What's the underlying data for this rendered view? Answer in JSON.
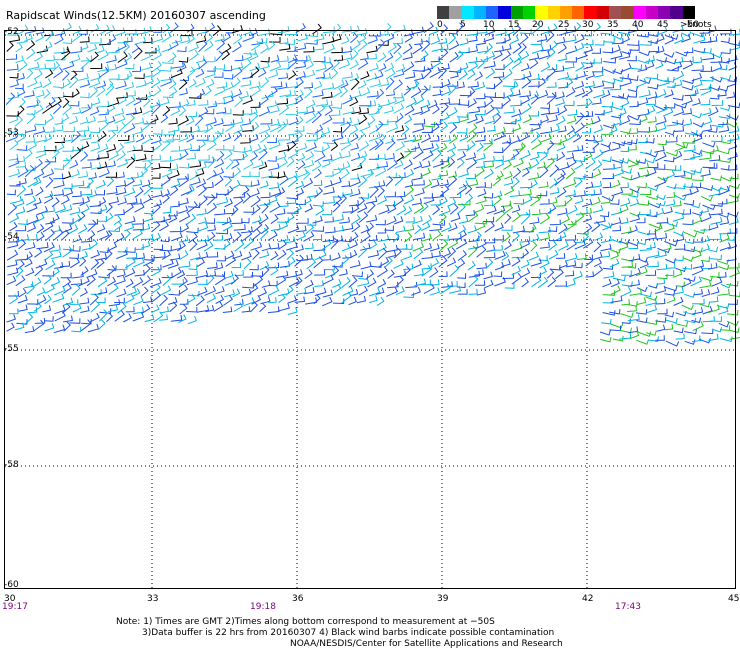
{
  "title": "Rapidscat Winds(12.5KM) 20160307 ascending",
  "legend": {
    "colors": [
      "#404040",
      "#a0a0a0",
      "#00c8ff",
      "#1e64ff",
      "#0a1eb4",
      "#00a000",
      "#8cdc00",
      "#ffff00",
      "#ffc800",
      "#ff8c00",
      "#ff5a00",
      "#ff0000",
      "#b41e1e",
      "#a05040",
      "#ff00ff",
      "#c800c8",
      "#7800a0",
      "#000000",
      "#000060"
    ],
    "tick_labels": [
      "0",
      "5",
      "10",
      "15",
      "20",
      "25",
      "30",
      "35",
      "40",
      "45",
      ">50"
    ],
    "units": "knots"
  },
  "map": {
    "latitude_labels": [
      "-52",
      "-53",
      "-54",
      "-55",
      "-58",
      "-60"
    ],
    "longitude_labels": [
      "30",
      "33",
      "36",
      "39",
      "42",
      "45"
    ],
    "time_labels": [
      "19:17",
      "19:18",
      "17:43"
    ],
    "lat_range": [
      -60,
      -52
    ],
    "lon_range": [
      30,
      45
    ],
    "gridlines": true
  },
  "notes": {
    "line1": "Note: 1) Times are GMT 2)Times along bottom correspond to measurement at −50S",
    "line2": "3)Data buffer is 22 hrs from 20160307 4) Black wind barbs indicate possible contamination",
    "line3": "NOAA/NESDIS/Center for Satellite Applications and Research"
  }
}
